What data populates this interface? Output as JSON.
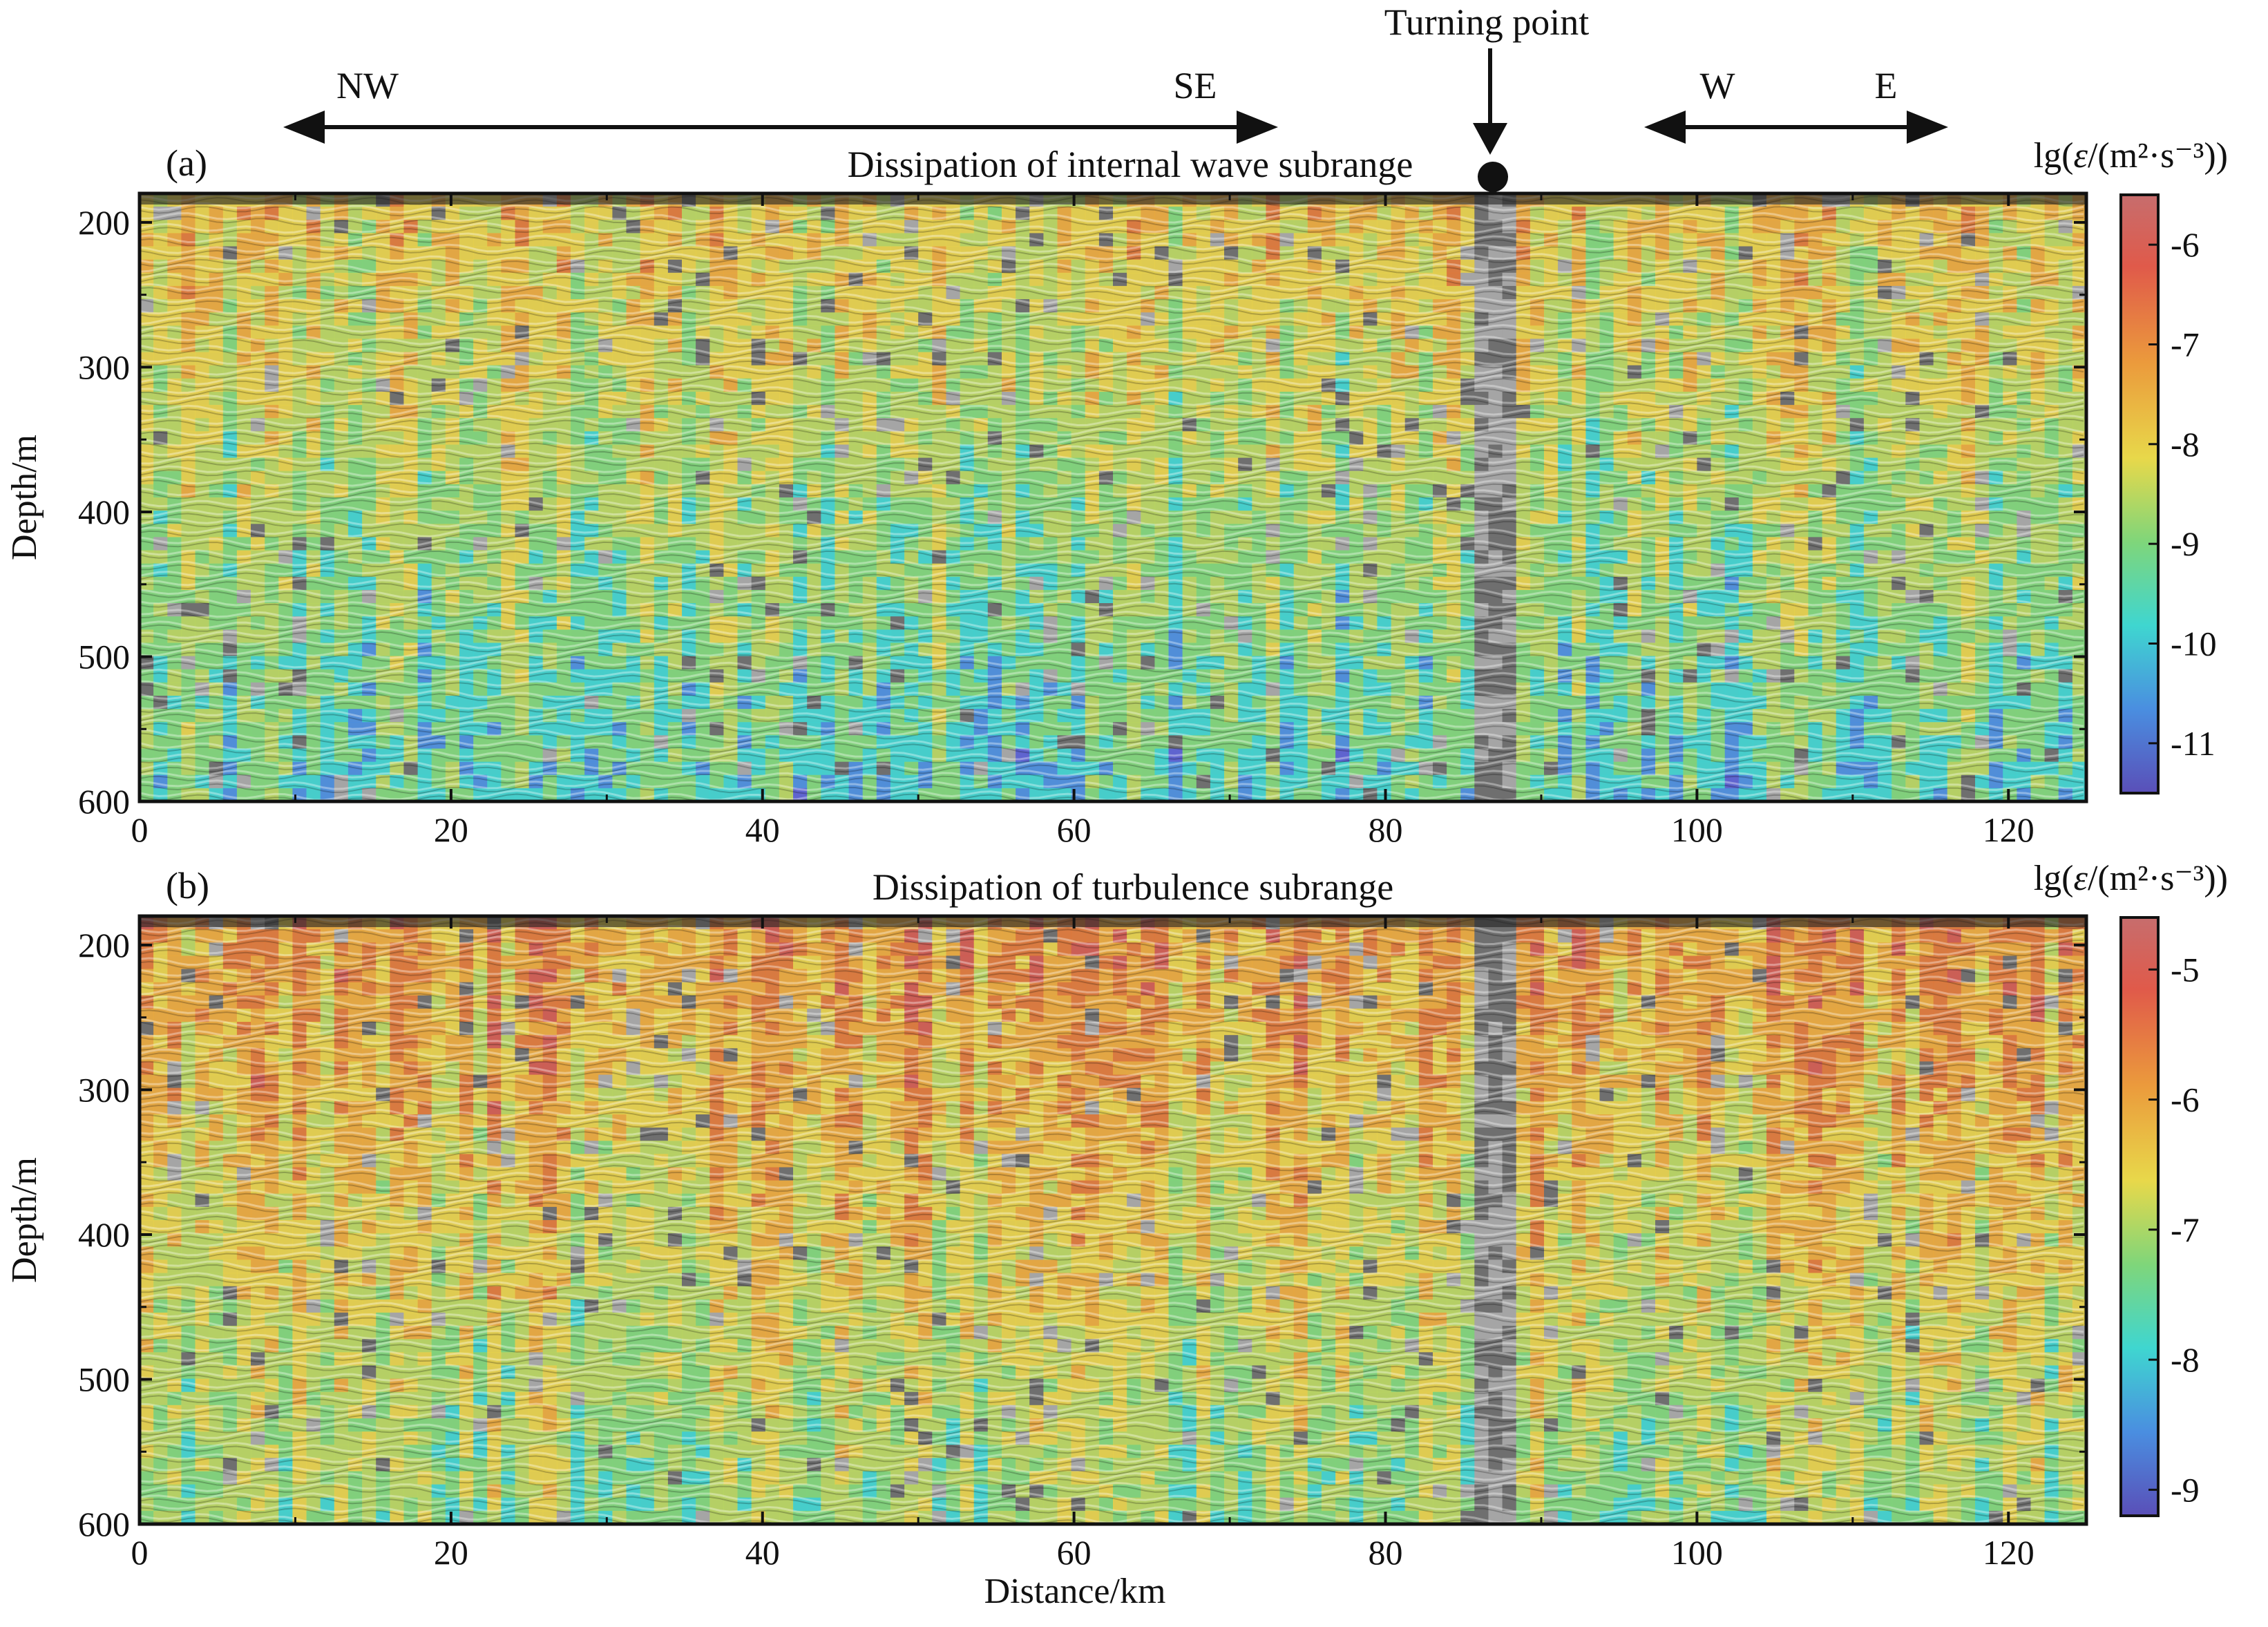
{
  "annotations": {
    "turning_point": "Turning point",
    "left_dir": {
      "from": "NW",
      "to": "SE"
    },
    "right_dir": {
      "from": "W",
      "to": "E"
    }
  },
  "panels": [
    {
      "label": "(a)",
      "title": "Dissipation of internal wave subrange",
      "colorbar_label_prefix": "lg(",
      "colorbar_label_mid": "ε",
      "colorbar_label_suffix": "/(m²·s⁻³))",
      "colorbar_ticks": [
        "-6",
        "-7",
        "-8",
        "-9",
        "-10",
        "-11"
      ],
      "colorbar_range": [
        -11.5,
        -5.5
      ]
    },
    {
      "label": "(b)",
      "title": "Dissipation of turbulence subrange",
      "colorbar_label_prefix": "lg(",
      "colorbar_label_mid": "ε",
      "colorbar_label_suffix": "/(m²·s⁻³))",
      "colorbar_ticks": [
        "-5",
        "-6",
        "-7",
        "-8",
        "-9"
      ],
      "colorbar_range": [
        -9.2,
        -4.6
      ]
    }
  ],
  "chart_data": {
    "type": "heatmap",
    "x_label": "Distance/km",
    "y_label": "Depth/m",
    "x_ticks": [
      "0",
      "20",
      "40",
      "60",
      "80",
      "100",
      "120"
    ],
    "y_ticks": [
      "200",
      "300",
      "400",
      "500",
      "600"
    ],
    "xlim": [
      0,
      125
    ],
    "ylim": [
      600,
      180
    ],
    "turning_point_km": 87,
    "colors": {
      "low": "#5a5fd6",
      "mid_low": "#3fd4d0",
      "mid": "#8ed07a",
      "mid_high": "#e8d24a",
      "high": "#e07838",
      "max": "#c95a5a"
    }
  }
}
